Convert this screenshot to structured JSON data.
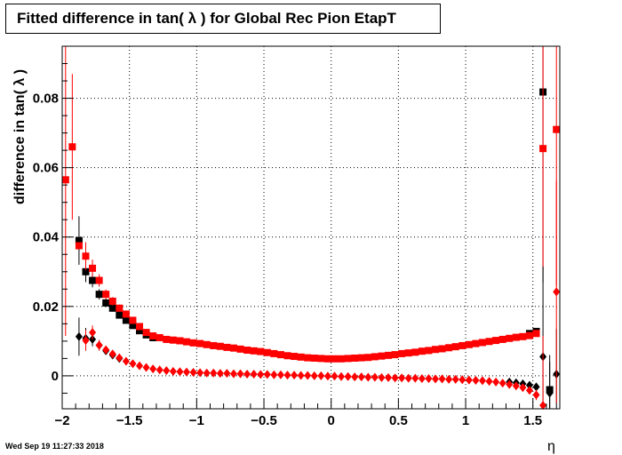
{
  "title": "Fitted difference in tan( λ ) for Global Rec Pion EtapT",
  "timestamp": "Wed Sep 19 11:27:33 2018",
  "chart_data": {
    "type": "scatter",
    "title": "Fitted difference in tan( λ ) for Global Rec Pion EtapT",
    "xlabel": "η",
    "ylabel": "difference in tan( λ )",
    "xlim": [
      -2.0,
      1.7
    ],
    "ylim": [
      -0.0095,
      0.095
    ],
    "xticks": [
      -2,
      -1.5,
      -1,
      -0.5,
      0,
      0.5,
      1,
      1.5
    ],
    "xtick_labels": [
      "−2",
      "−1.5",
      "−1",
      "−0.5",
      "0",
      "0.5",
      "1",
      "1.5"
    ],
    "yticks": [
      0,
      0.02,
      0.04,
      0.06,
      0.08
    ],
    "ytick_labels": [
      "0",
      "0.02",
      "0.04",
      "0.06",
      "0.08"
    ],
    "grid": true,
    "series": [
      {
        "marker": "square",
        "color": "#000000",
        "points": [
          [
            -1.875,
            0.039,
            0.007
          ],
          [
            -1.825,
            0.03,
            0.003
          ],
          [
            -1.775,
            0.0275,
            0.002
          ],
          [
            -1.725,
            0.0235,
            0.0015
          ],
          [
            -1.675,
            0.021,
            0.0012
          ],
          [
            -1.625,
            0.0195,
            0.001
          ],
          [
            -1.575,
            0.0175,
            0.001
          ],
          [
            -1.525,
            0.016,
            0.0008
          ],
          [
            -1.475,
            0.0145,
            0.0007
          ],
          [
            -1.425,
            0.013,
            0.0006
          ],
          [
            -1.375,
            0.0118,
            0.0005
          ],
          [
            -1.325,
            0.011,
            0.0005
          ],
          [
            1.475,
            0.0122,
            0.0008
          ],
          [
            1.525,
            0.0128,
            0.001
          ],
          [
            1.575,
            0.0818,
            0.055
          ],
          [
            1.625,
            -0.004,
            0.01
          ]
        ]
      },
      {
        "marker": "square",
        "color": "#ff0000",
        "points": [
          [
            -1.975,
            0.0565,
            0.045
          ],
          [
            -1.925,
            0.066,
            0.021
          ],
          [
            -1.875,
            0.0375,
            0.0
          ],
          [
            -1.825,
            0.0345,
            0.004
          ],
          [
            -1.775,
            0.031,
            0.0025
          ],
          [
            -1.725,
            0.0275,
            0.0018
          ],
          [
            -1.675,
            0.0235,
            0.0014
          ],
          [
            -1.625,
            0.0215,
            0.0012
          ],
          [
            -1.575,
            0.0195,
            0.001
          ],
          [
            -1.525,
            0.0178,
            0.0009
          ],
          [
            -1.475,
            0.016,
            0.0008
          ],
          [
            -1.425,
            0.0142,
            0.0006
          ],
          [
            -1.375,
            0.0125,
            0.0005
          ],
          [
            -1.325,
            0.0115,
            0.0004
          ],
          [
            -1.275,
            0.011,
            0.0004
          ],
          [
            -1.225,
            0.0105,
            0.0003
          ],
          [
            -1.175,
            0.0103,
            0.0003
          ],
          [
            -1.125,
            0.0101,
            0.0003
          ],
          [
            -1.075,
            0.0098,
            0.0003
          ],
          [
            -1.025,
            0.0095,
            0.0003
          ],
          [
            -0.975,
            0.0093,
            0.0003
          ],
          [
            -0.925,
            0.009,
            0.0003
          ],
          [
            -0.875,
            0.0087,
            0.0003
          ],
          [
            -0.825,
            0.0085,
            0.0003
          ],
          [
            -0.775,
            0.0082,
            0.0003
          ],
          [
            -0.725,
            0.008,
            0.0003
          ],
          [
            -0.675,
            0.0077,
            0.0003
          ],
          [
            -0.625,
            0.0074,
            0.0003
          ],
          [
            -0.575,
            0.0072,
            0.0003
          ],
          [
            -0.525,
            0.007,
            0.0003
          ],
          [
            -0.475,
            0.0067,
            0.0003
          ],
          [
            -0.425,
            0.0064,
            0.0003
          ],
          [
            -0.375,
            0.0061,
            0.0003
          ],
          [
            -0.325,
            0.0058,
            0.0003
          ],
          [
            -0.275,
            0.0056,
            0.0003
          ],
          [
            -0.225,
            0.0054,
            0.0003
          ],
          [
            -0.175,
            0.0052,
            0.0003
          ],
          [
            -0.125,
            0.0051,
            0.0003
          ],
          [
            -0.075,
            0.005,
            0.0003
          ],
          [
            -0.025,
            0.0049,
            0.0003
          ],
          [
            0.025,
            0.0049,
            0.0003
          ],
          [
            0.075,
            0.0049,
            0.0003
          ],
          [
            0.125,
            0.005,
            0.0003
          ],
          [
            0.175,
            0.0051,
            0.0003
          ],
          [
            0.225,
            0.0052,
            0.0003
          ],
          [
            0.275,
            0.0053,
            0.0003
          ],
          [
            0.325,
            0.0055,
            0.0003
          ],
          [
            0.375,
            0.0057,
            0.0003
          ],
          [
            0.425,
            0.0059,
            0.0003
          ],
          [
            0.475,
            0.0061,
            0.0003
          ],
          [
            0.525,
            0.0064,
            0.0003
          ],
          [
            0.575,
            0.0066,
            0.0003
          ],
          [
            0.625,
            0.0068,
            0.0003
          ],
          [
            0.675,
            0.0071,
            0.0003
          ],
          [
            0.725,
            0.0073,
            0.0003
          ],
          [
            0.775,
            0.0076,
            0.0003
          ],
          [
            0.825,
            0.0078,
            0.0003
          ],
          [
            0.875,
            0.0081,
            0.0003
          ],
          [
            0.925,
            0.0084,
            0.0003
          ],
          [
            0.975,
            0.0087,
            0.0003
          ],
          [
            1.025,
            0.009,
            0.0003
          ],
          [
            1.075,
            0.0093,
            0.0003
          ],
          [
            1.125,
            0.0096,
            0.0003
          ],
          [
            1.175,
            0.0099,
            0.0003
          ],
          [
            1.225,
            0.0102,
            0.0004
          ],
          [
            1.275,
            0.0105,
            0.0004
          ],
          [
            1.325,
            0.0108,
            0.0004
          ],
          [
            1.375,
            0.0111,
            0.0004
          ],
          [
            1.425,
            0.0113,
            0.0005
          ],
          [
            1.475,
            0.0116,
            0.0006
          ],
          [
            1.525,
            0.0122,
            0.0008
          ],
          [
            1.575,
            0.0655,
            0.035
          ],
          [
            1.675,
            0.071,
            0.045
          ]
        ]
      },
      {
        "marker": "diamond",
        "color": "#000000",
        "points": [
          [
            -1.875,
            0.0113,
            0.0055
          ],
          [
            -1.825,
            0.0108,
            0.003
          ],
          [
            -1.775,
            0.0105,
            0.002
          ],
          [
            -1.725,
            0.0088,
            0.0015
          ],
          [
            -1.675,
            0.0072,
            0.001
          ],
          [
            -1.625,
            0.006,
            0.0008
          ],
          [
            -1.575,
            0.005,
            0.0006
          ],
          [
            1.325,
            -0.0018,
            0.0004
          ],
          [
            1.375,
            -0.002,
            0.0005
          ],
          [
            1.425,
            -0.0023,
            0.0006
          ],
          [
            1.475,
            -0.0027,
            0.0008
          ],
          [
            1.525,
            -0.0032,
            0.0012
          ],
          [
            1.575,
            0.0055,
            0.026
          ],
          [
            1.625,
            -0.005,
            0.009
          ],
          [
            1.675,
            0.0005,
            0.013
          ]
        ]
      },
      {
        "marker": "diamond",
        "color": "#ff0000",
        "points": [
          [
            -1.825,
            0.0102,
            0.003
          ],
          [
            -1.775,
            0.0125,
            0.002
          ],
          [
            -1.725,
            0.0088,
            0.0015
          ],
          [
            -1.675,
            0.0075,
            0.001
          ],
          [
            -1.625,
            0.0063,
            0.0008
          ],
          [
            -1.575,
            0.0052,
            0.0006
          ],
          [
            -1.525,
            0.0042,
            0.0005
          ],
          [
            -1.475,
            0.0035,
            0.0004
          ],
          [
            -1.425,
            0.0029,
            0.0003
          ],
          [
            -1.375,
            0.0024,
            0.0003
          ],
          [
            -1.325,
            0.002,
            0.0002
          ],
          [
            -1.275,
            0.0017,
            0.0002
          ],
          [
            -1.225,
            0.0015,
            0.0002
          ],
          [
            -1.175,
            0.0013,
            0.0002
          ],
          [
            -1.125,
            0.0012,
            0.0002
          ],
          [
            -1.075,
            0.0011,
            0.0002
          ],
          [
            -1.025,
            0.001,
            0.0002
          ],
          [
            -0.975,
            0.0009,
            0.0002
          ],
          [
            -0.925,
            0.0008,
            0.0002
          ],
          [
            -0.875,
            0.0008,
            0.0002
          ],
          [
            -0.825,
            0.0007,
            0.0002
          ],
          [
            -0.775,
            0.0007,
            0.0002
          ],
          [
            -0.725,
            0.0006,
            0.0002
          ],
          [
            -0.675,
            0.0006,
            0.0002
          ],
          [
            -0.625,
            0.0005,
            0.0002
          ],
          [
            -0.575,
            0.0005,
            0.0002
          ],
          [
            -0.525,
            0.0004,
            0.0002
          ],
          [
            -0.475,
            0.0004,
            0.0002
          ],
          [
            -0.425,
            0.0003,
            0.0002
          ],
          [
            -0.375,
            0.0003,
            0.0002
          ],
          [
            -0.325,
            0.0002,
            0.0002
          ],
          [
            -0.275,
            0.0002,
            0.0002
          ],
          [
            -0.225,
            0.0001,
            0.0002
          ],
          [
            -0.175,
            0.0001,
            0.0002
          ],
          [
            -0.125,
            0.0,
            0.0002
          ],
          [
            -0.075,
            0.0,
            0.0002
          ],
          [
            -0.025,
            -0.0001,
            0.0002
          ],
          [
            0.025,
            -0.0001,
            0.0002
          ],
          [
            0.075,
            -0.0002,
            0.0002
          ],
          [
            0.125,
            -0.0002,
            0.0002
          ],
          [
            0.175,
            -0.0003,
            0.0002
          ],
          [
            0.225,
            -0.0003,
            0.0002
          ],
          [
            0.275,
            -0.0004,
            0.0002
          ],
          [
            0.325,
            -0.0004,
            0.0002
          ],
          [
            0.375,
            -0.0005,
            0.0002
          ],
          [
            0.425,
            -0.0005,
            0.0002
          ],
          [
            0.475,
            -0.0006,
            0.0002
          ],
          [
            0.525,
            -0.0006,
            0.0002
          ],
          [
            0.575,
            -0.0007,
            0.0002
          ],
          [
            0.625,
            -0.0007,
            0.0002
          ],
          [
            0.675,
            -0.0008,
            0.0002
          ],
          [
            0.725,
            -0.0008,
            0.0002
          ],
          [
            0.775,
            -0.0009,
            0.0002
          ],
          [
            0.825,
            -0.0009,
            0.0002
          ],
          [
            0.875,
            -0.001,
            0.0002
          ],
          [
            0.925,
            -0.001,
            0.0002
          ],
          [
            0.975,
            -0.0011,
            0.0002
          ],
          [
            1.025,
            -0.0012,
            0.0002
          ],
          [
            1.075,
            -0.0013,
            0.0002
          ],
          [
            1.125,
            -0.0014,
            0.0003
          ],
          [
            1.175,
            -0.0016,
            0.0003
          ],
          [
            1.225,
            -0.0018,
            0.0003
          ],
          [
            1.275,
            -0.0021,
            0.0004
          ],
          [
            1.325,
            -0.0025,
            0.0004
          ],
          [
            1.375,
            -0.0029,
            0.0005
          ],
          [
            1.425,
            -0.0034,
            0.0006
          ],
          [
            1.475,
            -0.0042,
            0.0008
          ],
          [
            1.525,
            -0.0055,
            0.0015
          ],
          [
            1.575,
            -0.0085,
            0.02
          ],
          [
            1.675,
            0.0242,
            0.032
          ]
        ]
      }
    ]
  }
}
